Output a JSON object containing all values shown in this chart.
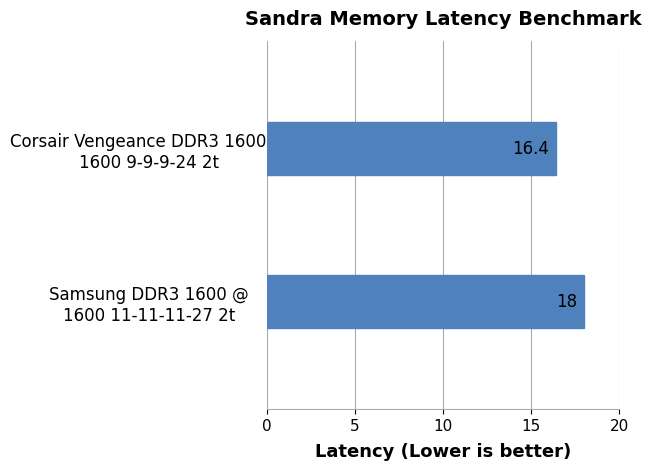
{
  "title": "Sandra Memory Latency Benchmark",
  "categories": [
    "Samsung DDR3 1600 @\n1600 11-11-11-27 2t",
    "Corsair Vengeance DDR3 1600 @\n1600 9-9-9-24 2t"
  ],
  "values": [
    18,
    16.4
  ],
  "bar_color": "#4f81bd",
  "xlabel": "Latency (Lower is better)",
  "xlim": [
    0,
    20
  ],
  "xticks": [
    0,
    5,
    10,
    15,
    20
  ],
  "value_labels": [
    "18",
    "16.4"
  ],
  "background_color": "#ffffff",
  "title_fontsize": 14,
  "xlabel_fontsize": 13,
  "tick_fontsize": 11,
  "ylabel_fontsize": 12,
  "bar_height": 0.35,
  "value_label_fontsize": 12,
  "grid_color": "#aaaaaa",
  "grid_linewidth": 0.8
}
